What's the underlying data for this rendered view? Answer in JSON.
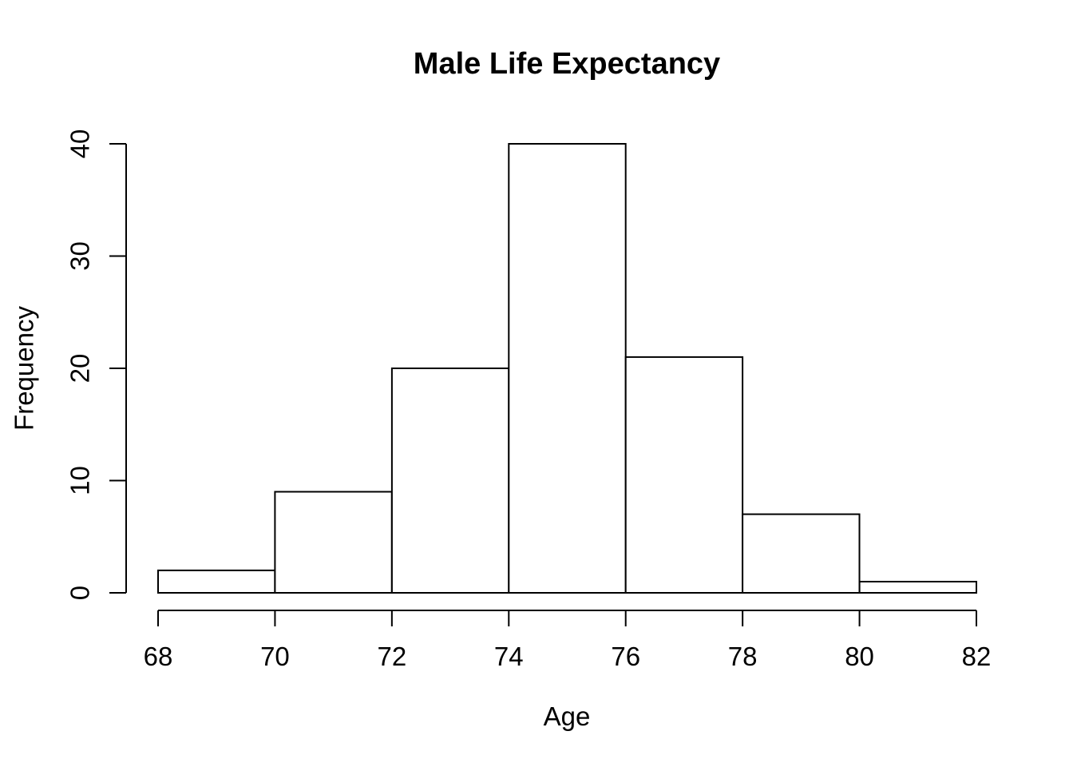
{
  "chart_data": {
    "type": "bar",
    "subtype": "histogram",
    "title": "Male Life Expectancy",
    "xlabel": "Age",
    "ylabel": "Frequency",
    "bin_edges": [
      68,
      70,
      72,
      74,
      76,
      78,
      80,
      82
    ],
    "counts": [
      2,
      9,
      20,
      40,
      21,
      7,
      1
    ],
    "xlim": [
      68,
      82
    ],
    "ylim": [
      0,
      40
    ],
    "x_ticks": [
      "68",
      "70",
      "72",
      "74",
      "76",
      "78",
      "80",
      "82"
    ],
    "y_ticks": [
      "0",
      "10",
      "20",
      "30",
      "40"
    ],
    "bar_fill": "#ffffff",
    "line_color": "#000000",
    "background": "#ffffff",
    "grid": false,
    "legend": "none"
  }
}
